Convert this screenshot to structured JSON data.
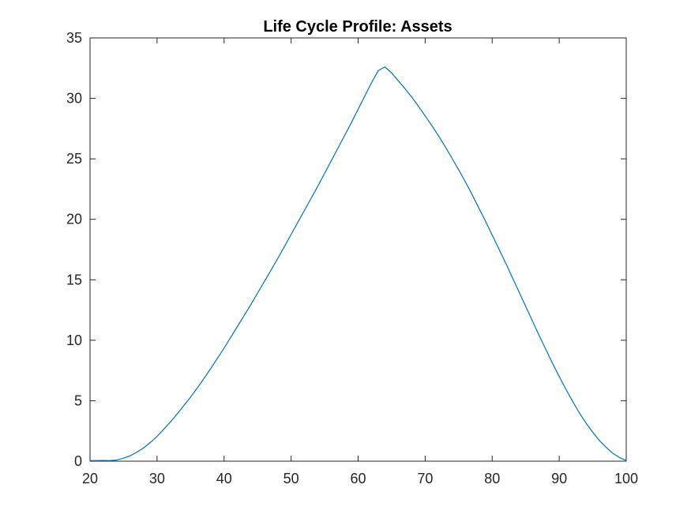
{
  "chart_data": {
    "type": "line",
    "title": "Life Cycle Profile: Assets",
    "xlabel": "",
    "ylabel": "",
    "xlim": [
      20,
      100
    ],
    "ylim": [
      0,
      35
    ],
    "xticks": [
      20,
      30,
      40,
      50,
      60,
      70,
      80,
      90,
      100
    ],
    "yticks": [
      0,
      5,
      10,
      15,
      20,
      25,
      30,
      35
    ],
    "grid": false,
    "series": [
      {
        "color": "#0072BD",
        "x": [
          20,
          21,
          22,
          23,
          24,
          25,
          26,
          27,
          28,
          29,
          30,
          31,
          32,
          33,
          34,
          35,
          36,
          37,
          38,
          39,
          40,
          41,
          42,
          43,
          44,
          45,
          46,
          47,
          48,
          49,
          50,
          51,
          52,
          53,
          54,
          55,
          56,
          57,
          58,
          59,
          60,
          61,
          62,
          63,
          64,
          65,
          66,
          67,
          68,
          69,
          70,
          71,
          72,
          73,
          74,
          75,
          76,
          77,
          78,
          79,
          80,
          81,
          82,
          83,
          84,
          85,
          86,
          87,
          88,
          89,
          90,
          91,
          92,
          93,
          94,
          95,
          96,
          97,
          98,
          99,
          100
        ],
        "y": [
          0.05,
          0.05,
          0.06,
          0.05,
          0.1,
          0.25,
          0.45,
          0.75,
          1.1,
          1.55,
          2.05,
          2.65,
          3.25,
          3.9,
          4.6,
          5.3,
          6.05,
          6.85,
          7.65,
          8.5,
          9.35,
          10.25,
          11.15,
          12.05,
          12.95,
          13.9,
          14.85,
          15.8,
          16.75,
          17.75,
          18.75,
          19.75,
          20.75,
          21.75,
          22.75,
          23.8,
          24.85,
          25.9,
          26.95,
          28.0,
          29.1,
          30.2,
          31.3,
          32.3,
          32.6,
          32.1,
          31.45,
          30.8,
          30.1,
          29.35,
          28.55,
          27.75,
          26.9,
          26.0,
          25.05,
          24.1,
          23.1,
          22.05,
          20.95,
          19.85,
          18.7,
          17.55,
          16.4,
          15.2,
          14.0,
          12.8,
          11.6,
          10.4,
          9.25,
          8.1,
          7.0,
          5.95,
          4.95,
          4.0,
          3.15,
          2.4,
          1.7,
          1.15,
          0.65,
          0.3,
          0.05
        ]
      }
    ]
  }
}
